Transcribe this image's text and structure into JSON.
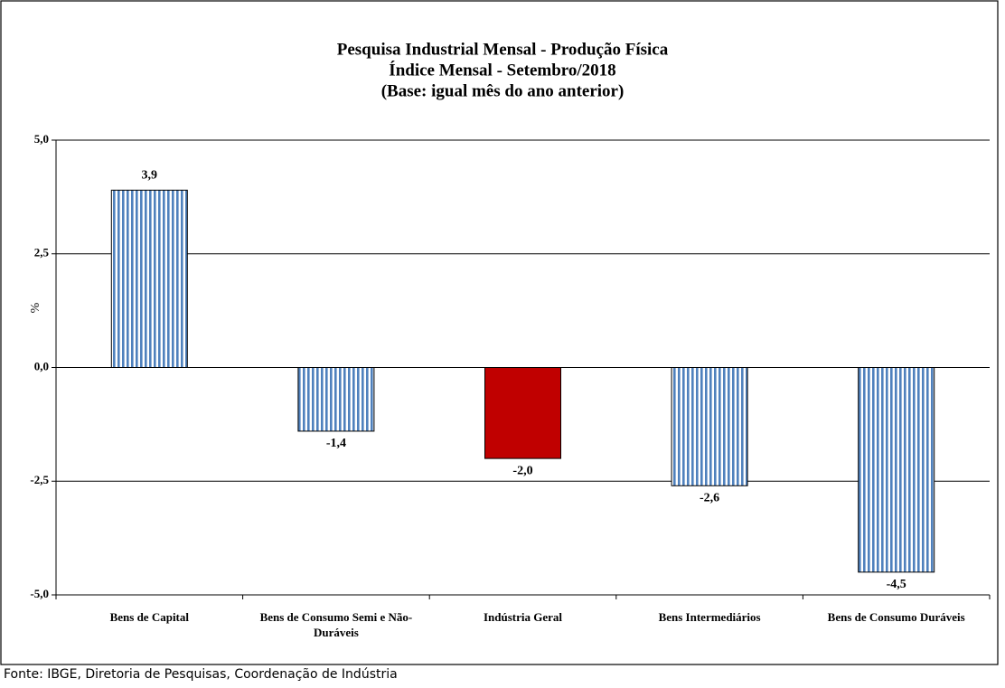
{
  "chart_data": {
    "type": "bar",
    "title": [
      "Pesquisa Industrial Mensal - Produção Física",
      "Índice Mensal - Setembro/2018",
      "(Base: igual mês do ano anterior)"
    ],
    "y_label": "%",
    "categories": [
      "Bens de Capital",
      "Bens de Consumo Semi e Não-Duráveis",
      "Indústria Geral",
      "Bens Intermediários",
      "Bens de Consumo Duráveis"
    ],
    "values": [
      3.9,
      -1.4,
      -2.0,
      -2.6,
      -4.5
    ],
    "value_labels": [
      "3,9",
      "-1,4",
      "-2,0",
      "-2,6",
      "-4,5"
    ],
    "bar_styles": [
      {
        "color": "#4f81bd",
        "pattern": "vertical-stripes"
      },
      {
        "color": "#4f81bd",
        "pattern": "vertical-stripes"
      },
      {
        "color": "#c00000",
        "pattern": "solid"
      },
      {
        "color": "#4f81bd",
        "pattern": "vertical-stripes"
      },
      {
        "color": "#4f81bd",
        "pattern": "vertical-stripes"
      }
    ],
    "ylim": [
      -5,
      5
    ],
    "yticks": [
      {
        "value": -5,
        "label": "-5,0"
      },
      {
        "value": -2.5,
        "label": "-2,5"
      },
      {
        "value": 0,
        "label": "0,0"
      },
      {
        "value": 2.5,
        "label": "2,5"
      },
      {
        "value": 5,
        "label": "5,0"
      }
    ],
    "grid": true,
    "source": "Fonte: IBGE, Diretoria de Pesquisas, Coordenação de Indústria"
  }
}
